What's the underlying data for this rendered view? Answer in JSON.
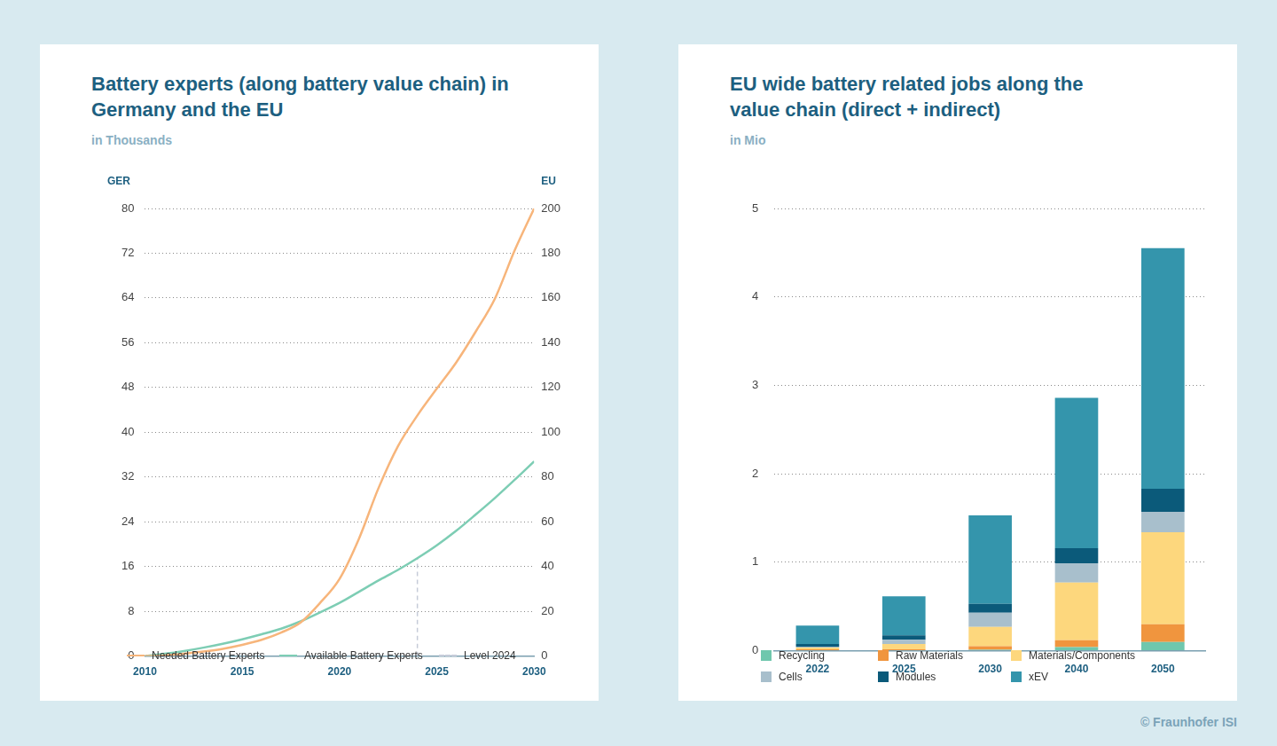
{
  "footer": "© Fraunhofer ISI",
  "chart_data": [
    {
      "type": "line",
      "title": "Battery experts (along battery value chain) in Germany and the EU",
      "subtitle": "in Thousands",
      "y_label": "GER",
      "y2_label": "EU",
      "x": [
        2010,
        2011,
        2012,
        2013,
        2014,
        2015,
        2016,
        2017,
        2018,
        2019,
        2020,
        2021,
        2022,
        2023,
        2024,
        2025,
        2026,
        2027,
        2028,
        2029,
        2030
      ],
      "xlim": [
        2010,
        2030
      ],
      "xticks": [
        2010,
        2015,
        2020,
        2025,
        2030
      ],
      "ylim": [
        0,
        80
      ],
      "yticks": [
        0,
        8,
        16,
        24,
        32,
        40,
        48,
        56,
        64,
        72,
        80
      ],
      "y2lim": [
        0,
        200
      ],
      "y2ticks": [
        0,
        20,
        40,
        60,
        80,
        100,
        120,
        140,
        160,
        180,
        200
      ],
      "grid": true,
      "legend": "bottom",
      "series": [
        {
          "name": "Needed Battery Experts",
          "color": "#f7b57b",
          "values": [
            0,
            0.1,
            0.4,
            0.8,
            1.3,
            2.0,
            2.9,
            4.2,
            6.0,
            9.5,
            13.8,
            21.0,
            30.0,
            37.5,
            43.0,
            47.8,
            52.5,
            58.0,
            64.0,
            72.5,
            80.0
          ]
        },
        {
          "name": "Available Battery Experts",
          "color": "#7dcdb4",
          "values": [
            0,
            0.4,
            0.9,
            1.5,
            2.2,
            3.0,
            3.9,
            4.9,
            6.2,
            7.8,
            9.5,
            11.5,
            13.5,
            15.4,
            17.5,
            19.8,
            22.4,
            25.3,
            28.3,
            31.5,
            34.8
          ]
        },
        {
          "name": "Level 2024",
          "color": "#c5cbd8",
          "line_style": "dashed",
          "x": [
            2024,
            2024
          ],
          "values": [
            0,
            17.5
          ]
        }
      ]
    },
    {
      "type": "bar",
      "title": "EU wide battery related jobs along the value chain (direct + indirect)",
      "subtitle": "in Mio",
      "categories": [
        "2022",
        "2025",
        "2030",
        "2040",
        "2050"
      ],
      "ylim": [
        0,
        5
      ],
      "yticks": [
        0,
        1,
        2,
        3,
        4,
        5
      ],
      "grid": true,
      "stacked": true,
      "legend": "bottom",
      "series": [
        {
          "name": "Recycling",
          "color": "#6fc7ad",
          "values": [
            0.005,
            0.005,
            0.01,
            0.04,
            0.1
          ]
        },
        {
          "name": "Raw Materials",
          "color": "#f0953e",
          "values": [
            0.01,
            0.01,
            0.04,
            0.08,
            0.2
          ]
        },
        {
          "name": "Materials/Components",
          "color": "#fdd77d",
          "values": [
            0.02,
            0.06,
            0.22,
            0.65,
            1.04
          ]
        },
        {
          "name": "Cells",
          "color": "#a8bfcc",
          "values": [
            0.01,
            0.05,
            0.16,
            0.22,
            0.23
          ]
        },
        {
          "name": "Modules",
          "color": "#0b5a7a",
          "values": [
            0.03,
            0.05,
            0.1,
            0.17,
            0.26
          ]
        },
        {
          "name": "xEV",
          "color": "#3495ac",
          "values": [
            0.21,
            0.44,
            1.0,
            1.7,
            2.72
          ]
        }
      ]
    }
  ]
}
